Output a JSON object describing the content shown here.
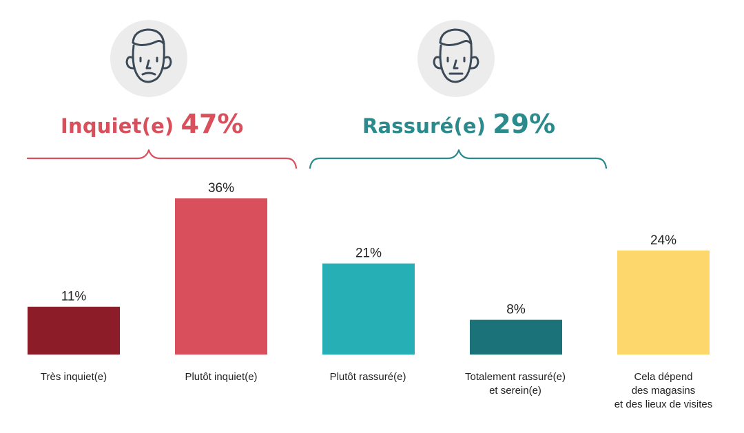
{
  "colors": {
    "worried": "#d94f5c",
    "reassured": "#2a8a8c",
    "face_circle": "#ececec",
    "face_stroke": "#3c4a57",
    "label_text": "#222222"
  },
  "groups": [
    {
      "name": "Inquiet(e)",
      "percent": "47%",
      "color": "#d94f5c",
      "icon": "worried-face-icon"
    },
    {
      "name": "Rassuré(e)",
      "percent": "29%",
      "color": "#2a8a8c",
      "icon": "neutral-face-icon"
    }
  ],
  "chart_data": {
    "type": "bar",
    "categories": [
      "Très inquiet(e)",
      "Plutôt inquiet(e)",
      "Plutôt rassuré(e)",
      "Totalement rassuré(e)\net serein(e)",
      "Cela dépend\ndes magasins\net des lieux de visites"
    ],
    "values": [
      11,
      36,
      21,
      8,
      24
    ],
    "value_labels": [
      "11%",
      "36%",
      "21%",
      "8%",
      "24%"
    ],
    "bar_colors": [
      "#8b1c28",
      "#d94f5c",
      "#26b0b6",
      "#1b7278",
      "#fdd66c"
    ],
    "unit": "%",
    "grid": false
  }
}
